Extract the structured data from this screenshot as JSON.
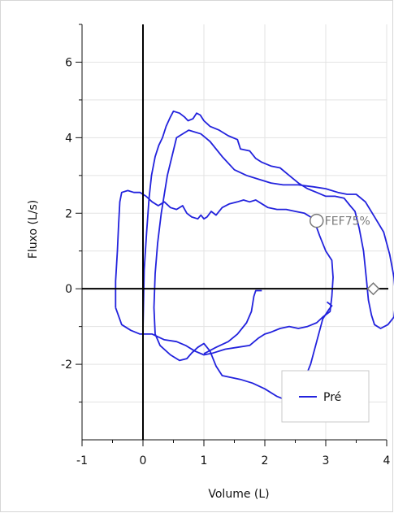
{
  "chart_data": {
    "type": "line",
    "xlabel": "Volume (L)",
    "ylabel": "Fluxo (L/s)",
    "xlim": [
      -1,
      4
    ],
    "ylim": [
      -4,
      7
    ],
    "x_ticks": [
      -1,
      0,
      1,
      2,
      3,
      4
    ],
    "x_tick_labels": [
      "-1",
      "0",
      "1",
      "2",
      "3",
      "4"
    ],
    "y_ticks": [
      -2,
      0,
      2,
      4,
      6
    ],
    "y_tick_labels": [
      "-2",
      "0",
      "2",
      "4",
      "6"
    ],
    "grid": true,
    "legend": {
      "position": "bottom-right",
      "entries": [
        "Pré"
      ]
    },
    "annotations": [
      {
        "label": "FEF75%",
        "x": 2.85,
        "y": 1.8,
        "marker": "circle"
      },
      {
        "label": "",
        "x": 3.78,
        "y": 0.0,
        "marker": "diamond"
      }
    ],
    "series": [
      {
        "name": "Pré",
        "color": "#2222dd",
        "loops": [
          {
            "label": "outer loop",
            "points": [
              [
                0.0,
                -1.1
              ],
              [
                0.02,
                0.5
              ],
              [
                0.06,
                1.5
              ],
              [
                0.1,
                2.4
              ],
              [
                0.14,
                3.0
              ],
              [
                0.2,
                3.5
              ],
              [
                0.26,
                3.8
              ],
              [
                0.32,
                4.0
              ],
              [
                0.38,
                4.3
              ],
              [
                0.45,
                4.55
              ],
              [
                0.5,
                4.7
              ],
              [
                0.6,
                4.65
              ],
              [
                0.68,
                4.55
              ],
              [
                0.74,
                4.45
              ],
              [
                0.82,
                4.5
              ],
              [
                0.88,
                4.65
              ],
              [
                0.94,
                4.6
              ],
              [
                1.0,
                4.45
              ],
              [
                1.1,
                4.3
              ],
              [
                1.25,
                4.2
              ],
              [
                1.4,
                4.05
              ],
              [
                1.55,
                3.95
              ],
              [
                1.6,
                3.7
              ],
              [
                1.75,
                3.65
              ],
              [
                1.85,
                3.45
              ],
              [
                1.95,
                3.35
              ],
              [
                2.1,
                3.25
              ],
              [
                2.25,
                3.2
              ],
              [
                2.4,
                3.0
              ],
              [
                2.55,
                2.8
              ],
              [
                2.7,
                2.65
              ],
              [
                2.85,
                2.55
              ],
              [
                3.0,
                2.45
              ],
              [
                3.15,
                2.45
              ],
              [
                3.3,
                2.4
              ],
              [
                3.4,
                2.2
              ],
              [
                3.48,
                2.05
              ],
              [
                3.55,
                1.6
              ],
              [
                3.62,
                1.0
              ],
              [
                3.67,
                0.2
              ],
              [
                3.7,
                -0.3
              ],
              [
                3.75,
                -0.7
              ],
              [
                3.8,
                -0.95
              ],
              [
                3.9,
                -1.05
              ],
              [
                4.02,
                -0.95
              ],
              [
                4.12,
                -0.75
              ],
              [
                4.15,
                -0.3
              ],
              [
                4.12,
                0.3
              ],
              [
                4.05,
                0.9
              ],
              [
                3.95,
                1.5
              ],
              [
                3.82,
                1.85
              ],
              [
                3.65,
                2.3
              ],
              [
                3.5,
                2.5
              ],
              [
                3.35,
                2.5
              ],
              [
                3.2,
                2.55
              ],
              [
                3.0,
                2.65
              ],
              [
                2.8,
                2.7
              ],
              [
                2.55,
                2.75
              ],
              [
                2.3,
                2.75
              ],
              [
                2.1,
                2.8
              ],
              [
                1.9,
                2.9
              ],
              [
                1.7,
                3.0
              ],
              [
                1.5,
                3.15
              ],
              [
                1.3,
                3.5
              ],
              [
                1.1,
                3.9
              ],
              [
                0.95,
                4.1
              ],
              [
                0.75,
                4.2
              ],
              [
                0.55,
                4.0
              ],
              [
                0.4,
                3.0
              ],
              [
                0.3,
                2.0
              ],
              [
                0.24,
                1.2
              ],
              [
                0.2,
                0.4
              ],
              [
                0.18,
                -0.5
              ],
              [
                0.2,
                -1.2
              ],
              [
                0.28,
                -1.5
              ],
              [
                0.45,
                -1.75
              ],
              [
                0.6,
                -1.9
              ],
              [
                0.72,
                -1.85
              ],
              [
                0.8,
                -1.7
              ],
              [
                0.9,
                -1.55
              ],
              [
                1.0,
                -1.45
              ],
              [
                1.1,
                -1.65
              ],
              [
                1.2,
                -2.05
              ],
              [
                1.3,
                -2.3
              ],
              [
                1.45,
                -2.35
              ],
              [
                1.6,
                -2.4
              ],
              [
                1.8,
                -2.5
              ],
              [
                2.0,
                -2.65
              ],
              [
                2.2,
                -2.85
              ],
              [
                2.35,
                -2.95
              ],
              [
                2.45,
                -2.9
              ],
              [
                2.55,
                -2.7
              ],
              [
                2.65,
                -2.4
              ],
              [
                2.75,
                -2.0
              ],
              [
                2.85,
                -1.4
              ],
              [
                2.95,
                -0.8
              ],
              [
                3.05,
                -0.55
              ],
              [
                3.1,
                -0.45
              ],
              [
                3.02,
                -0.35
              ]
            ]
          },
          {
            "label": "inner loop",
            "points": [
              [
                -0.45,
                -0.5
              ],
              [
                -0.45,
                0.2
              ],
              [
                -0.42,
                1.0
              ],
              [
                -0.4,
                1.7
              ],
              [
                -0.38,
                2.3
              ],
              [
                -0.35,
                2.55
              ],
              [
                -0.25,
                2.6
              ],
              [
                -0.15,
                2.55
              ],
              [
                -0.05,
                2.55
              ],
              [
                0.05,
                2.45
              ],
              [
                0.15,
                2.3
              ],
              [
                0.25,
                2.2
              ],
              [
                0.35,
                2.3
              ],
              [
                0.45,
                2.15
              ],
              [
                0.55,
                2.1
              ],
              [
                0.65,
                2.2
              ],
              [
                0.72,
                2.0
              ],
              [
                0.8,
                1.9
              ],
              [
                0.9,
                1.85
              ],
              [
                0.95,
                1.95
              ],
              [
                1.0,
                1.85
              ],
              [
                1.05,
                1.9
              ],
              [
                1.12,
                2.05
              ],
              [
                1.2,
                1.95
              ],
              [
                1.3,
                2.15
              ],
              [
                1.42,
                2.25
              ],
              [
                1.55,
                2.3
              ],
              [
                1.65,
                2.35
              ],
              [
                1.75,
                2.3
              ],
              [
                1.85,
                2.35
              ],
              [
                1.95,
                2.25
              ],
              [
                2.05,
                2.15
              ],
              [
                2.2,
                2.1
              ],
              [
                2.35,
                2.1
              ],
              [
                2.5,
                2.05
              ],
              [
                2.65,
                2.0
              ],
              [
                2.8,
                1.85
              ],
              [
                2.9,
                1.4
              ],
              [
                3.0,
                1.0
              ],
              [
                3.1,
                0.75
              ],
              [
                3.12,
                0.3
              ],
              [
                3.1,
                -0.2
              ],
              [
                3.07,
                -0.6
              ],
              [
                2.95,
                -0.75
              ],
              [
                2.85,
                -0.9
              ],
              [
                2.7,
                -1.0
              ],
              [
                2.55,
                -1.05
              ],
              [
                2.4,
                -1.0
              ],
              [
                2.25,
                -1.05
              ],
              [
                2.1,
                -1.15
              ],
              [
                2.0,
                -1.2
              ],
              [
                1.9,
                -1.3
              ],
              [
                1.75,
                -1.5
              ],
              [
                1.55,
                -1.55
              ],
              [
                1.35,
                -1.6
              ],
              [
                1.15,
                -1.7
              ],
              [
                1.0,
                -1.75
              ],
              [
                0.85,
                -1.65
              ],
              [
                0.7,
                -1.5
              ],
              [
                0.55,
                -1.4
              ],
              [
                0.35,
                -1.35
              ],
              [
                0.15,
                -1.2
              ],
              [
                -0.05,
                -1.2
              ],
              [
                -0.2,
                -1.1
              ],
              [
                -0.35,
                -0.95
              ],
              [
                -0.45,
                -0.5
              ]
            ]
          },
          {
            "label": "tail",
            "points": [
              [
                1.0,
                -1.72
              ],
              [
                1.2,
                -1.55
              ],
              [
                1.4,
                -1.4
              ],
              [
                1.55,
                -1.2
              ],
              [
                1.7,
                -0.9
              ],
              [
                1.78,
                -0.6
              ],
              [
                1.82,
                -0.2
              ],
              [
                1.85,
                -0.05
              ],
              [
                1.95,
                -0.05
              ]
            ]
          }
        ]
      }
    ]
  }
}
